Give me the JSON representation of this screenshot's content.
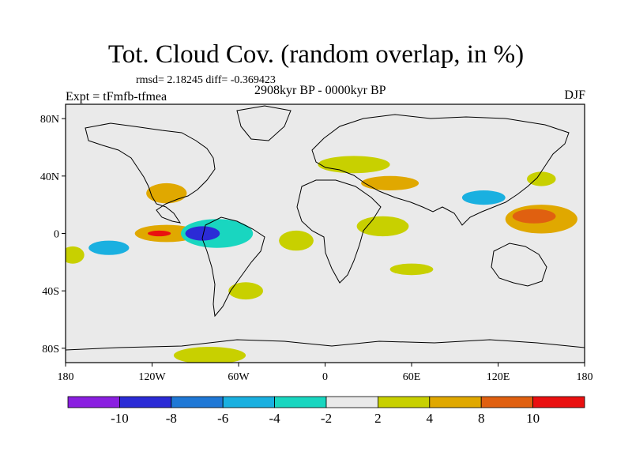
{
  "title": "Tot. Cloud Cov. (random overlap, in %)",
  "stats": "rmsd= 2.18245 diff= -0.369423",
  "experiment": "Expt = tFmfb-tfmea",
  "period": "2908kyr BP - 0000kyr BP",
  "season": "DJF",
  "map": {
    "lon_range": [
      -180,
      180
    ],
    "lat_range": [
      -90,
      90
    ],
    "lat_ticks": [
      {
        "value": 80,
        "label": "80N"
      },
      {
        "value": 40,
        "label": "40N"
      },
      {
        "value": 0,
        "label": "0"
      },
      {
        "value": -40,
        "label": "40S"
      },
      {
        "value": -80,
        "label": "80S"
      }
    ],
    "lon_ticks": [
      {
        "value": -180,
        "label": "180"
      },
      {
        "value": -120,
        "label": "120W"
      },
      {
        "value": -60,
        "label": "60W"
      },
      {
        "value": 0,
        "label": "0"
      },
      {
        "value": 60,
        "label": "60E"
      },
      {
        "value": 120,
        "label": "120E"
      },
      {
        "value": 180,
        "label": "180"
      }
    ],
    "background_color": "#eaeaea"
  },
  "colorbar": {
    "boundaries": [
      -10,
      -8,
      -6,
      -4,
      -2,
      2,
      4,
      8,
      10
    ],
    "colors": [
      "#8a1fe0",
      "#2b2bd6",
      "#1f78d6",
      "#1ab0e0",
      "#19d6c0",
      "#eaeaea",
      "#c8d000",
      "#e0a800",
      "#e06010",
      "#ea1010"
    ]
  },
  "chart_data": {
    "type": "heatmap",
    "variable": "Total cloud cover difference (%)",
    "levels": [
      -10,
      -8,
      -6,
      -4,
      -2,
      2,
      4,
      8,
      10
    ],
    "anomaly_regions": [
      {
        "lon": -85,
        "lat": 0,
        "rx": 12,
        "ry": 5,
        "level": -10
      },
      {
        "lon": -115,
        "lat": 0,
        "rx": 8,
        "ry": 2,
        "level": 10
      },
      {
        "lon": -110,
        "lat": 0,
        "rx": 22,
        "ry": 6,
        "level": 4
      },
      {
        "lon": -150,
        "lat": -10,
        "rx": 14,
        "ry": 5,
        "level": -6
      },
      {
        "lon": -75,
        "lat": 0,
        "rx": 25,
        "ry": 10,
        "level": -4
      },
      {
        "lon": -110,
        "lat": 28,
        "rx": 14,
        "ry": 7,
        "level": 4
      },
      {
        "lon": -150,
        "lat": 30,
        "rx": 20,
        "ry": 7,
        "level": -2
      },
      {
        "lon": -150,
        "lat": 12,
        "rx": 25,
        "ry": 5,
        "level": -2
      },
      {
        "lon": -60,
        "lat": 12,
        "rx": 25,
        "ry": 6,
        "level": -2
      },
      {
        "lon": -55,
        "lat": -40,
        "rx": 12,
        "ry": 6,
        "level": 2
      },
      {
        "lon": -20,
        "lat": -5,
        "rx": 12,
        "ry": 7,
        "level": 2
      },
      {
        "lon": 20,
        "lat": 48,
        "rx": 25,
        "ry": 6,
        "level": 2
      },
      {
        "lon": 45,
        "lat": 35,
        "rx": 20,
        "ry": 5,
        "level": 4
      },
      {
        "lon": 40,
        "lat": 5,
        "rx": 18,
        "ry": 7,
        "level": 2
      },
      {
        "lon": 80,
        "lat": 10,
        "rx": 25,
        "ry": 7,
        "level": -2
      },
      {
        "lon": 110,
        "lat": 25,
        "rx": 15,
        "ry": 5,
        "level": -6
      },
      {
        "lon": 150,
        "lat": 10,
        "rx": 25,
        "ry": 10,
        "level": 4
      },
      {
        "lon": 145,
        "lat": 12,
        "rx": 15,
        "ry": 5,
        "level": 8
      },
      {
        "lon": 150,
        "lat": 38,
        "rx": 10,
        "ry": 5,
        "level": 2
      },
      {
        "lon": -130,
        "lat": 68,
        "rx": 25,
        "ry": 4,
        "level": -2
      },
      {
        "lon": -40,
        "lat": 80,
        "rx": 30,
        "ry": 5,
        "level": -2
      },
      {
        "lon": 75,
        "lat": -70,
        "rx": 40,
        "ry": 8,
        "level": -2
      },
      {
        "lon": -80,
        "lat": -85,
        "rx": 25,
        "ry": 6,
        "level": 2
      },
      {
        "lon": 60,
        "lat": -25,
        "rx": 15,
        "ry": 4,
        "level": 2
      },
      {
        "lon": -175,
        "lat": -15,
        "rx": 8,
        "ry": 6,
        "level": 2
      }
    ]
  }
}
